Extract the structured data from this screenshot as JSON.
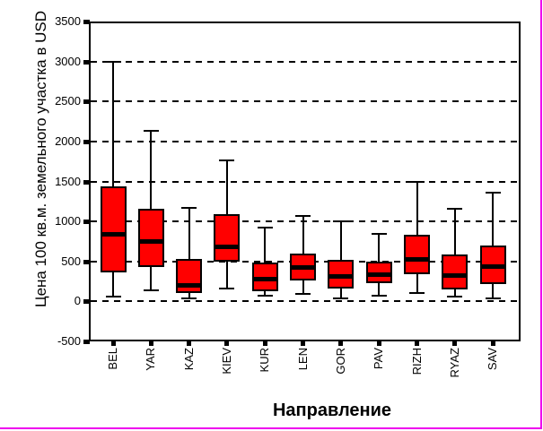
{
  "window": {
    "border_color": "#ee00ee",
    "background_color": "#ffffff"
  },
  "chart_data": {
    "type": "boxplot",
    "title": "",
    "xlabel": "Направление",
    "ylabel": "Цена 100 кв.м. земельного участка в USD",
    "ylim": [
      -500,
      3500
    ],
    "y_ticks": [
      3500,
      3000,
      2500,
      2000,
      1500,
      1000,
      500,
      0,
      -500
    ],
    "gridlines": [
      3000,
      2500,
      2000,
      1500,
      1000,
      500,
      0
    ],
    "grid_style": "horizontal-dashed",
    "legend": "none",
    "box_fill_color": "#ff0000",
    "box_line_color": "#000000",
    "categories": [
      "BEL",
      "YAR",
      "KAZ",
      "KIEV",
      "KUR",
      "LEN",
      "GOR",
      "PAV",
      "RIZH",
      "RYAZ",
      "SAV"
    ],
    "boxes": [
      {
        "label": "BEL",
        "whisker_low": 60,
        "q1": 360,
        "median": 840,
        "q3": 1440,
        "whisker_high": 3000
      },
      {
        "label": "YAR",
        "whisker_low": 140,
        "q1": 430,
        "median": 750,
        "q3": 1160,
        "whisker_high": 2130
      },
      {
        "label": "KAZ",
        "whisker_low": 40,
        "q1": 100,
        "median": 205,
        "q3": 530,
        "whisker_high": 1170
      },
      {
        "label": "KIEV",
        "whisker_low": 160,
        "q1": 500,
        "median": 680,
        "q3": 1090,
        "whisker_high": 1760
      },
      {
        "label": "KUR",
        "whisker_low": 70,
        "q1": 130,
        "median": 280,
        "q3": 490,
        "whisker_high": 920
      },
      {
        "label": "LEN",
        "whisker_low": 90,
        "q1": 260,
        "median": 420,
        "q3": 600,
        "whisker_high": 1070
      },
      {
        "label": "GOR",
        "whisker_low": 40,
        "q1": 160,
        "median": 310,
        "q3": 520,
        "whisker_high": 1000
      },
      {
        "label": "PAV",
        "whisker_low": 70,
        "q1": 230,
        "median": 330,
        "q3": 500,
        "whisker_high": 850
      },
      {
        "label": "RIZH",
        "whisker_low": 100,
        "q1": 340,
        "median": 530,
        "q3": 830,
        "whisker_high": 1500
      },
      {
        "label": "RYAZ",
        "whisker_low": 60,
        "q1": 150,
        "median": 320,
        "q3": 590,
        "whisker_high": 1160
      },
      {
        "label": "SAV",
        "whisker_low": 35,
        "q1": 220,
        "median": 430,
        "q3": 700,
        "whisker_high": 1360
      }
    ]
  }
}
